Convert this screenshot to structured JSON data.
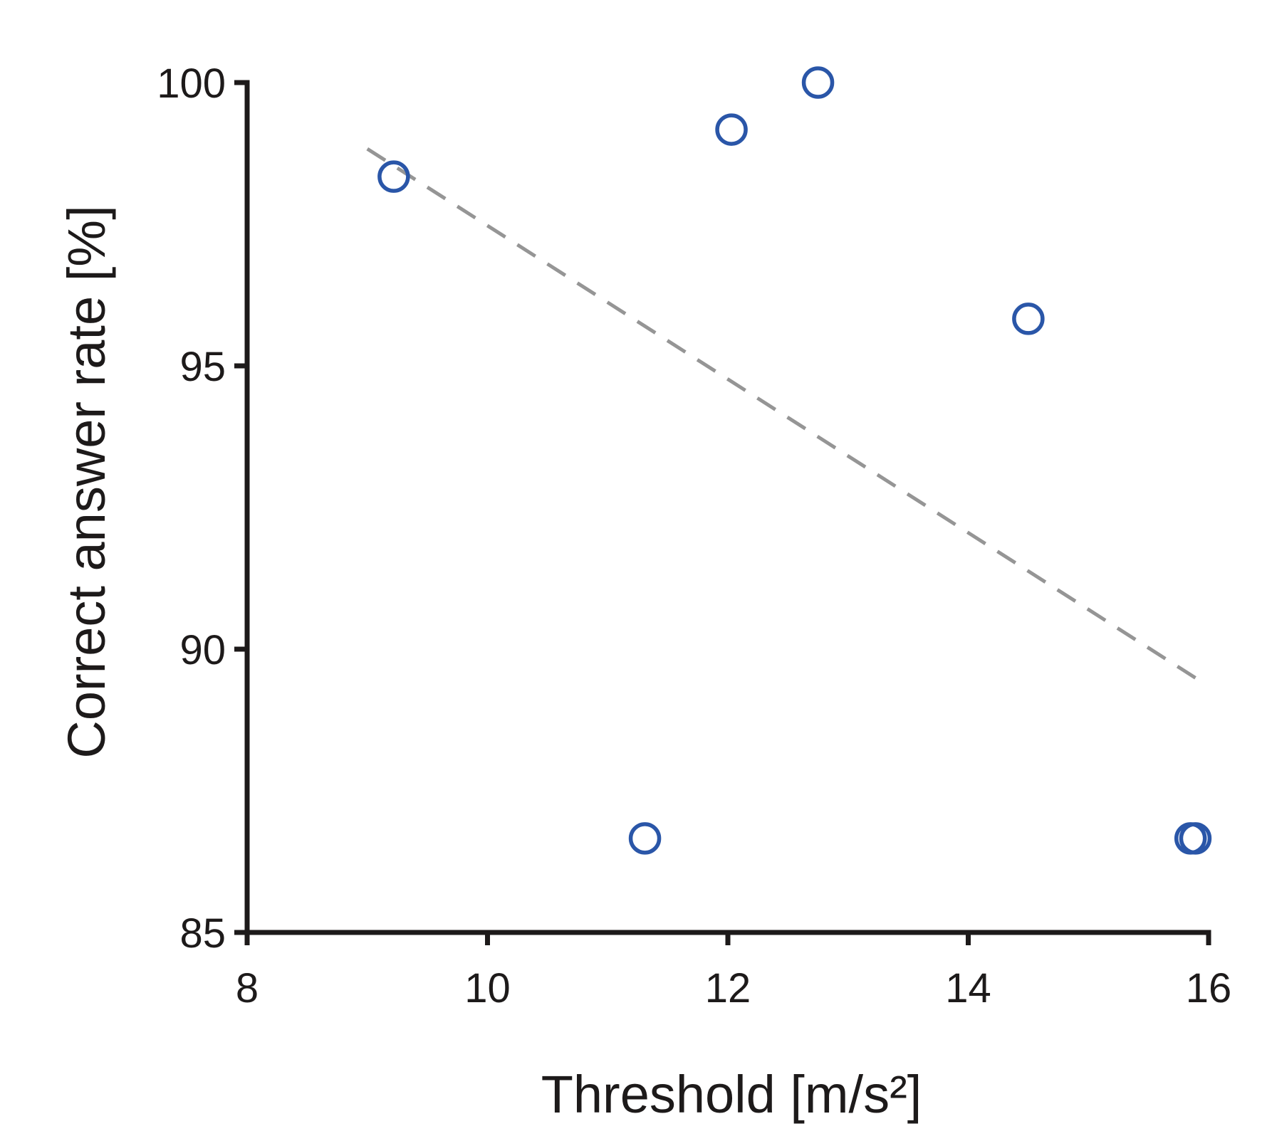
{
  "chart_data": {
    "type": "scatter",
    "title": "",
    "xlabel": "Threshold [m/s²]",
    "ylabel": "Correct answer rate [%]",
    "xlim": [
      8,
      16
    ],
    "ylim": [
      85,
      100
    ],
    "xticks": [
      8,
      10,
      12,
      14,
      16
    ],
    "yticks": [
      85,
      90,
      95,
      100
    ],
    "grid": false,
    "legend": "none",
    "series": [
      {
        "name": "data",
        "marker": "open-circle",
        "color": "#2a56a8",
        "points": [
          {
            "x": 9.22,
            "y": 98.34
          },
          {
            "x": 11.31,
            "y": 86.66
          },
          {
            "x": 12.03,
            "y": 99.17
          },
          {
            "x": 12.75,
            "y": 100.0
          },
          {
            "x": 14.5,
            "y": 95.83
          },
          {
            "x": 15.85,
            "y": 86.66
          },
          {
            "x": 15.89,
            "y": 86.66
          }
        ]
      }
    ],
    "trendline": {
      "style": "dashed",
      "color": "#959595",
      "x": [
        9.0,
        15.9
      ],
      "y": [
        98.83,
        89.48
      ]
    }
  }
}
